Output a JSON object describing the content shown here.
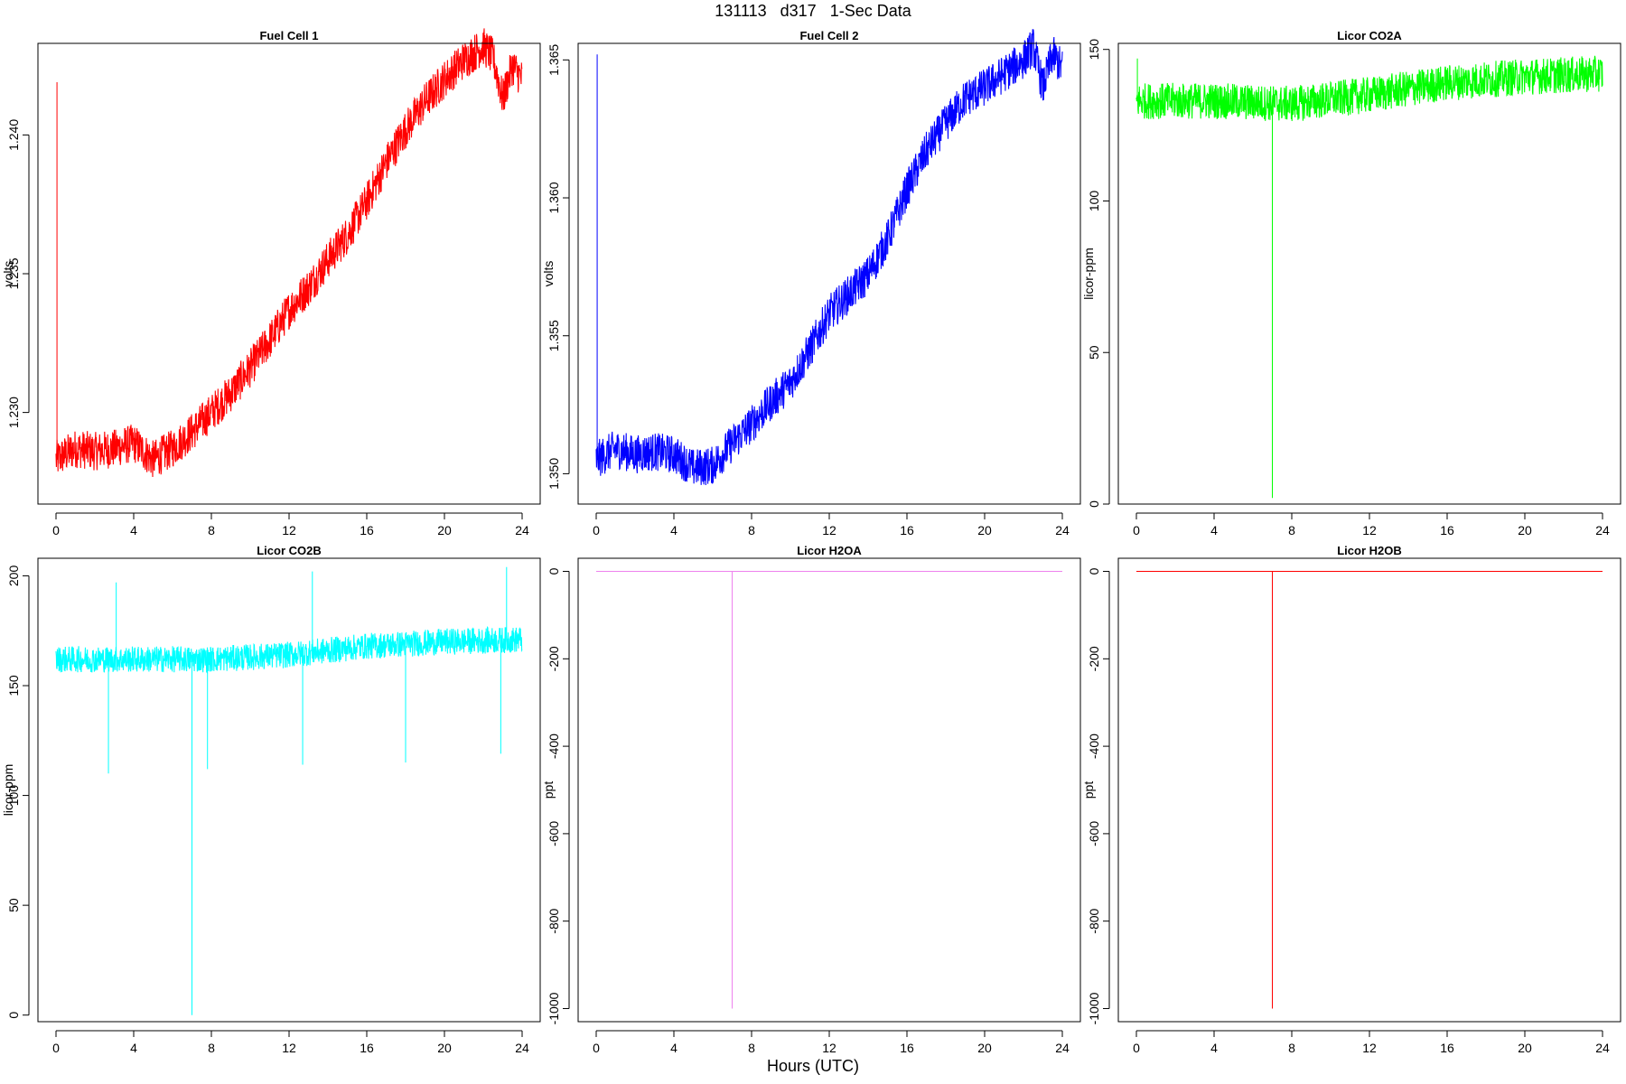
{
  "figure": {
    "title": "131113   d317   1-Sec Data",
    "xlabel": "Hours (UTC)"
  },
  "chart_data": [
    {
      "type": "line",
      "title": "Fuel Cell 1",
      "ylabel": "volts",
      "color": "#ff0000",
      "xlim": [
        0,
        24
      ],
      "ylim": [
        1.2267,
        1.2433
      ],
      "xticks": [
        "0",
        "4",
        "8",
        "12",
        "16",
        "20",
        "24"
      ],
      "yticks": [
        "1.230",
        "1.235",
        "1.240"
      ],
      "noise": 0.0007,
      "series": [
        {
          "x": [
            0,
            1,
            2,
            3,
            4,
            5,
            6,
            7,
            8,
            9,
            10,
            11,
            12,
            13,
            14,
            15,
            16,
            17,
            18,
            19,
            20,
            21,
            22,
            22.5,
            23,
            23.5,
            24
          ],
          "y": [
            1.2283,
            1.2287,
            1.2286,
            1.2287,
            1.2289,
            1.2283,
            1.2287,
            1.2293,
            1.23,
            1.2307,
            1.2316,
            1.2326,
            1.2337,
            1.2345,
            1.2355,
            1.2364,
            1.2376,
            1.239,
            1.2402,
            1.2412,
            1.242,
            1.2427,
            1.2432,
            1.2428,
            1.2413,
            1.2425,
            1.242
          ]
        }
      ],
      "spikes": [
        {
          "x": 0.05,
          "y1": 1.2283,
          "y2": 1.2419
        }
      ]
    },
    {
      "type": "line",
      "title": "Fuel Cell 2",
      "ylabel": "volts",
      "color": "#0000ff",
      "xlim": [
        0,
        24
      ],
      "ylim": [
        1.3489,
        1.3656
      ],
      "xticks": [
        "0",
        "4",
        "8",
        "12",
        "16",
        "20",
        "24"
      ],
      "yticks": [
        "1.350",
        "1.355",
        "1.360",
        "1.365"
      ],
      "noise": 0.0007,
      "series": [
        {
          "x": [
            0,
            1,
            2,
            3,
            4,
            5,
            6,
            7,
            8,
            9,
            10,
            11,
            12,
            13,
            14,
            15,
            16,
            17,
            18,
            19,
            20,
            21,
            22,
            22.5,
            23,
            23.5,
            24
          ],
          "y": [
            1.3505,
            1.3509,
            1.3507,
            1.3508,
            1.3507,
            1.3502,
            1.3503,
            1.3511,
            1.3518,
            1.3526,
            1.3533,
            1.3545,
            1.3558,
            1.3565,
            1.3572,
            1.3585,
            1.3603,
            1.3617,
            1.3627,
            1.3636,
            1.364,
            1.3645,
            1.365,
            1.3655,
            1.364,
            1.3652,
            1.3647
          ]
        }
      ],
      "spikes": [
        {
          "x": 0.05,
          "y1": 1.3505,
          "y2": 1.3652
        }
      ]
    },
    {
      "type": "line",
      "title": "Licor CO2A",
      "ylabel": "licor-ppm",
      "color": "#00ff00",
      "xlim": [
        0,
        24
      ],
      "ylim": [
        0,
        152
      ],
      "xticks": [
        "0",
        "4",
        "8",
        "12",
        "16",
        "20",
        "24"
      ],
      "yticks": [
        "0",
        "50",
        "100",
        "150"
      ],
      "noise": 6,
      "series": [
        {
          "x": [
            0,
            4,
            8,
            12,
            16,
            20,
            24
          ],
          "y": [
            133,
            133,
            132,
            135,
            139,
            141,
            142
          ]
        }
      ],
      "spikes": [
        {
          "x": 0.05,
          "y1": 133,
          "y2": 147
        },
        {
          "x": 7,
          "y1": 133,
          "y2": 2
        }
      ]
    },
    {
      "type": "line",
      "title": "Licor CO2B",
      "ylabel": "licor-ppm",
      "color": "#00ffff",
      "xlim": [
        0,
        24
      ],
      "ylim": [
        -3,
        208
      ],
      "xticks": [
        "0",
        "4",
        "8",
        "12",
        "16",
        "20",
        "24"
      ],
      "yticks": [
        "0",
        "50",
        "100",
        "150",
        "200"
      ],
      "noise": 6,
      "series": [
        {
          "x": [
            0,
            4,
            8,
            12,
            16,
            20,
            24
          ],
          "y": [
            162,
            162,
            162,
            164,
            168,
            170,
            171
          ]
        }
      ],
      "spikes": [
        {
          "x": 2.7,
          "y1": 162,
          "y2": 110
        },
        {
          "x": 3.1,
          "y1": 162,
          "y2": 197
        },
        {
          "x": 7.0,
          "y1": 162,
          "y2": 0
        },
        {
          "x": 7.8,
          "y1": 162,
          "y2": 112
        },
        {
          "x": 12.7,
          "y1": 164,
          "y2": 114
        },
        {
          "x": 13.2,
          "y1": 164,
          "y2": 202
        },
        {
          "x": 18.0,
          "y1": 168,
          "y2": 115
        },
        {
          "x": 22.9,
          "y1": 170,
          "y2": 119
        },
        {
          "x": 23.2,
          "y1": 170,
          "y2": 204
        }
      ]
    },
    {
      "type": "line",
      "title": "Licor H2OA",
      "ylabel": "ppt",
      "color": "#ee82ee",
      "xlim": [
        0,
        24
      ],
      "ylim": [
        -1030,
        30
      ],
      "xticks": [
        "0",
        "4",
        "8",
        "12",
        "16",
        "20",
        "24"
      ],
      "yticks": [
        "0",
        "-200",
        "-400",
        "-600",
        "-800",
        "-1000"
      ],
      "noise": 0,
      "series": [
        {
          "x": [
            0,
            24
          ],
          "y": [
            0,
            0
          ]
        }
      ],
      "spikes": [
        {
          "x": 7,
          "y1": 0,
          "y2": -1000
        }
      ]
    },
    {
      "type": "line",
      "title": "Licor H2OB",
      "ylabel": "ppt",
      "color": "#ff0000",
      "xlim": [
        0,
        24
      ],
      "ylim": [
        -1030,
        30
      ],
      "xticks": [
        "0",
        "4",
        "8",
        "12",
        "16",
        "20",
        "24"
      ],
      "yticks": [
        "0",
        "-200",
        "-400",
        "-600",
        "-800",
        "-1000"
      ],
      "noise": 0,
      "series": [
        {
          "x": [
            0,
            24
          ],
          "y": [
            0,
            0
          ]
        }
      ],
      "spikes": [
        {
          "x": 7,
          "y1": 0,
          "y2": -1000
        }
      ]
    }
  ]
}
